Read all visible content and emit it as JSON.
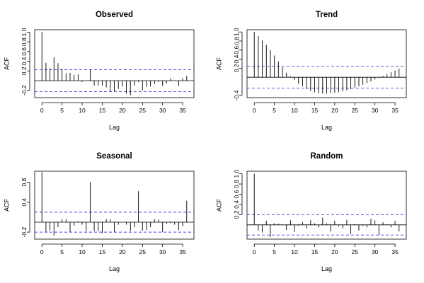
{
  "chart_data": [
    {
      "type": "bar",
      "title": "Observed",
      "xlabel": "Lag",
      "ylabel": "ACF",
      "xlim": [
        -1.8,
        37.8
      ],
      "ylim": [
        -0.35,
        1.05
      ],
      "xticks": [
        0,
        5,
        10,
        15,
        20,
        25,
        30,
        35
      ],
      "yticks": [
        -0.2,
        0.2,
        0.4,
        0.6,
        0.8,
        1.0
      ],
      "ytick_labels": [
        "-0.2",
        "0.2",
        "0.4",
        "0.6",
        "0.8",
        "1.0"
      ],
      "ci": [
        0.225,
        -0.225
      ],
      "lags": [
        0,
        1,
        2,
        3,
        4,
        5,
        6,
        7,
        8,
        9,
        10,
        11,
        12,
        13,
        14,
        15,
        16,
        17,
        18,
        19,
        20,
        21,
        22,
        23,
        24,
        25,
        26,
        27,
        28,
        29,
        30,
        31,
        32,
        33,
        34,
        35,
        36
      ],
      "values": [
        1.0,
        0.37,
        0.26,
        0.48,
        0.36,
        0.25,
        0.15,
        0.16,
        0.12,
        0.13,
        -0.03,
        0.0,
        0.23,
        -0.1,
        -0.1,
        -0.1,
        -0.14,
        -0.22,
        -0.22,
        -0.17,
        -0.12,
        -0.27,
        -0.3,
        -0.1,
        -0.03,
        -0.2,
        -0.13,
        -0.12,
        -0.07,
        -0.03,
        -0.11,
        -0.06,
        0.05,
        0.0,
        -0.11,
        0.05,
        0.1
      ]
    },
    {
      "type": "bar",
      "title": "Trend",
      "xlabel": "Lag",
      "ylabel": "ACF",
      "xlim": [
        -1.8,
        37.8
      ],
      "ylim": [
        -0.45,
        1.05
      ],
      "xticks": [
        0,
        5,
        10,
        15,
        20,
        25,
        30,
        35
      ],
      "yticks": [
        -0.4,
        0.2,
        0.4,
        0.6,
        0.8,
        1.0
      ],
      "ytick_labels": [
        "-0.4",
        "0.2",
        "0.4",
        "0.6",
        "0.8",
        "1.0"
      ],
      "ci": [
        0.24,
        -0.24
      ],
      "lags": [
        0,
        1,
        2,
        3,
        4,
        5,
        6,
        7,
        8,
        9,
        10,
        11,
        12,
        13,
        14,
        15,
        16,
        17,
        18,
        19,
        20,
        21,
        22,
        23,
        24,
        25,
        26,
        27,
        28,
        29,
        30,
        31,
        32,
        33,
        34,
        35,
        36
      ],
      "values": [
        1.0,
        0.91,
        0.81,
        0.72,
        0.6,
        0.48,
        0.35,
        0.22,
        0.1,
        0.02,
        -0.06,
        -0.14,
        -0.2,
        -0.26,
        -0.3,
        -0.33,
        -0.35,
        -0.36,
        -0.36,
        -0.35,
        -0.34,
        -0.33,
        -0.31,
        -0.29,
        -0.26,
        -0.23,
        -0.2,
        -0.17,
        -0.13,
        -0.09,
        -0.05,
        -0.01,
        0.03,
        0.07,
        0.11,
        0.15,
        0.19
      ]
    },
    {
      "type": "bar",
      "title": "Seasonal",
      "xlabel": "Lag",
      "ylabel": "ACF",
      "xlim": [
        -1.8,
        37.8
      ],
      "ylim": [
        -0.34,
        1.02
      ],
      "xticks": [
        0,
        5,
        10,
        15,
        20,
        25,
        30,
        35
      ],
      "yticks": [
        -0.2,
        0.4,
        0.8
      ],
      "ytick_labels": [
        "-0.2",
        "0.4",
        "0.8"
      ],
      "ci": [
        0.2,
        -0.2
      ],
      "lags": [
        0,
        1,
        2,
        3,
        4,
        5,
        6,
        7,
        8,
        9,
        10,
        11,
        12,
        13,
        14,
        15,
        16,
        17,
        18,
        19,
        20,
        21,
        22,
        23,
        24,
        25,
        26,
        27,
        28,
        29,
        30,
        31,
        32,
        33,
        34,
        35,
        36
      ],
      "values": [
        1.0,
        -0.2,
        -0.17,
        -0.27,
        -0.1,
        0.06,
        0.06,
        -0.2,
        -0.07,
        0.02,
        -0.05,
        -0.18,
        0.8,
        -0.18,
        -0.18,
        -0.22,
        0.06,
        0.05,
        -0.2,
        -0.05,
        0.0,
        -0.05,
        -0.18,
        -0.1,
        0.62,
        -0.17,
        -0.16,
        -0.1,
        0.06,
        0.05,
        -0.2,
        -0.03,
        -0.02,
        -0.05,
        -0.16,
        -0.08,
        0.43
      ]
    },
    {
      "type": "bar",
      "title": "Random",
      "xlabel": "Lag",
      "ylabel": "ACF",
      "xlim": [
        -1.8,
        37.8
      ],
      "ylim": [
        -0.28,
        1.05
      ],
      "xticks": [
        0,
        5,
        10,
        15,
        20,
        25,
        30,
        35
      ],
      "yticks": [
        0.2,
        0.4,
        0.6,
        0.8,
        1.0
      ],
      "ytick_labels": [
        "0.2",
        "0.4",
        "0.6",
        "0.8",
        "1.0"
      ],
      "ci": [
        0.2,
        -0.2
      ],
      "lags": [
        0,
        1,
        2,
        3,
        4,
        5,
        6,
        7,
        8,
        9,
        10,
        11,
        12,
        13,
        14,
        15,
        16,
        17,
        18,
        19,
        20,
        21,
        22,
        23,
        24,
        25,
        26,
        27,
        28,
        29,
        30,
        31,
        32,
        33,
        34,
        35,
        36
      ],
      "values": [
        1.0,
        -0.11,
        -0.15,
        0.08,
        -0.24,
        0.03,
        0.02,
        -0.01,
        -0.1,
        0.09,
        -0.14,
        -0.02,
        0.06,
        -0.07,
        0.09,
        0.03,
        -0.05,
        0.14,
        0.03,
        -0.13,
        0.08,
        -0.03,
        -0.07,
        0.1,
        -0.18,
        0.02,
        -0.11,
        -0.02,
        -0.05,
        0.12,
        0.09,
        -0.2,
        0.05,
        0.01,
        -0.05,
        0.08,
        -0.13
      ]
    }
  ]
}
